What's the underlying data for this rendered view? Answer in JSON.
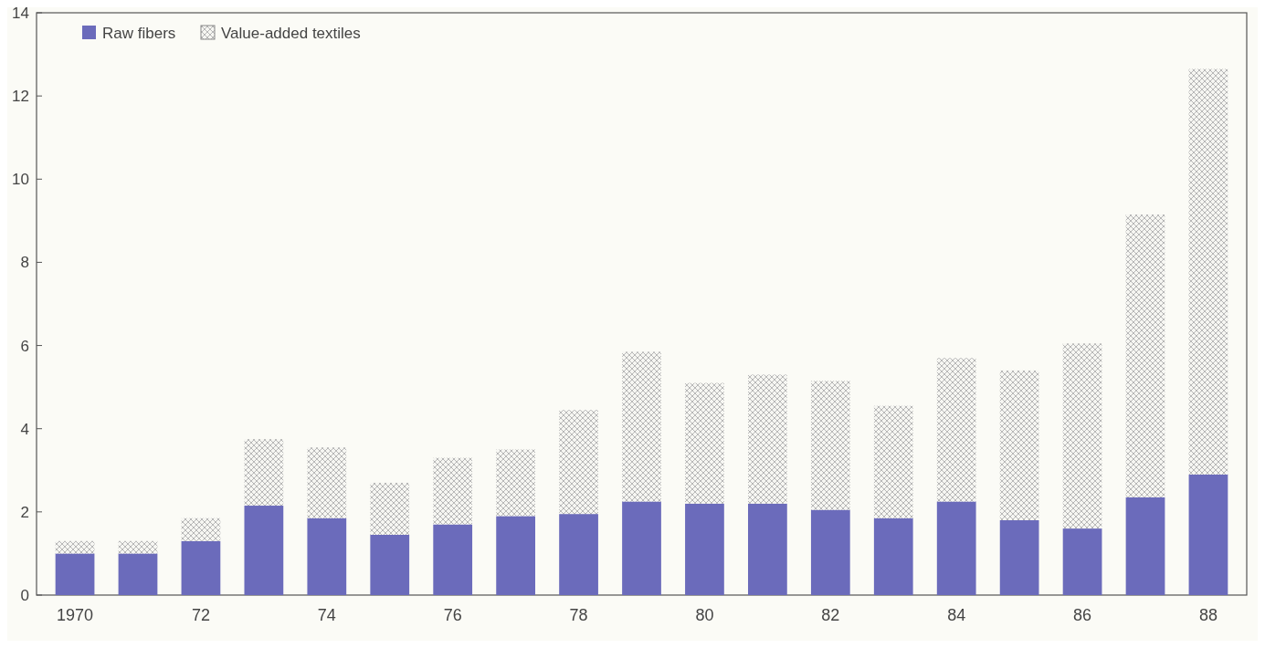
{
  "chart_data": {
    "type": "bar",
    "stacked": true,
    "categories": [
      "1970",
      null,
      "72",
      null,
      "74",
      null,
      "76",
      null,
      "78",
      null,
      "80",
      null,
      "82",
      null,
      "84",
      null,
      "86",
      null,
      "88"
    ],
    "series": [
      {
        "name": "Raw fibers",
        "color": "#6b6bbb",
        "values": [
          1.0,
          1.0,
          1.3,
          2.15,
          1.85,
          1.45,
          1.7,
          1.9,
          1.95,
          2.25,
          2.2,
          2.2,
          2.05,
          1.85,
          2.25,
          1.8,
          1.6,
          2.35,
          2.9
        ]
      },
      {
        "name": "Value-added textiles",
        "color": "#b0b0b0",
        "values": [
          0.3,
          0.3,
          0.55,
          1.6,
          1.7,
          1.25,
          1.6,
          1.6,
          2.5,
          3.6,
          2.9,
          3.1,
          3.1,
          2.7,
          3.45,
          3.6,
          4.45,
          6.8,
          9.75
        ]
      }
    ],
    "ylim": [
      0,
      14
    ],
    "yticks": [
      0,
      2,
      4,
      6,
      8,
      10,
      12,
      14
    ],
    "legend": "top left"
  }
}
